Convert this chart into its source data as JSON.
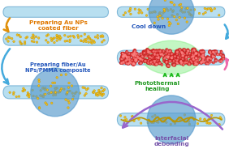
{
  "bg_color": "#ffffff",
  "fiber_color": "#b8dff0",
  "fiber_border": "#80b8d8",
  "au_np_color": "#f0c020",
  "au_np_border": "#c09000",
  "circle_color": "#5599cc",
  "circle_alpha": 0.65,
  "green_glow_color": "#88ee88",
  "red_particle_color": "#cc2222",
  "pink_highlight_color": "#ff8888",
  "crack_color": "#b8960a",
  "arrow_yellow": "#e0900a",
  "arrow_blue": "#44aadd",
  "arrow_pink": "#ee66aa",
  "arrow_purple": "#9966cc",
  "arrow_green": "#22bb22",
  "text_orange": "#e07800",
  "text_blue": "#2255bb",
  "text_green": "#229922",
  "text_purple": "#7755aa",
  "label_preparing_au": "Preparing Au NPs\ncoated fiber",
  "label_preparing_composite": "Preparing fiber/Au\nNPs/PMMA composite",
  "label_cool_down": "Cool down",
  "label_photothermal": "Photothermal\nhealing",
  "label_interfacial": "Interfacial\ndebonding"
}
